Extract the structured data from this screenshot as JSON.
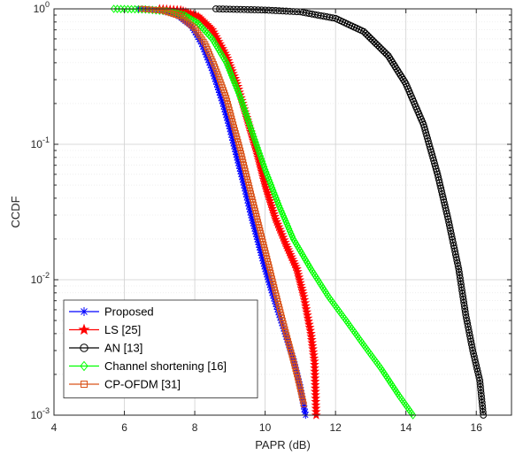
{
  "chart_data": {
    "type": "line",
    "title": "",
    "xlabel": "PAPR (dB)",
    "ylabel": "CCDF",
    "xlim": [
      4,
      17
    ],
    "ylim": [
      0.001,
      1
    ],
    "yscale": "log",
    "grid": true,
    "legend_position": "bottom-left",
    "x_ticks": [
      "4",
      "6",
      "8",
      "10",
      "12",
      "14",
      "16"
    ],
    "y_ticks": [
      {
        "base": "10",
        "exp": "0"
      },
      {
        "base": "10",
        "exp": "-1"
      },
      {
        "base": "10",
        "exp": "-2"
      },
      {
        "base": "10",
        "exp": "-3"
      }
    ],
    "series": [
      {
        "name": "Proposed",
        "color": "#0000ff",
        "marker": "asterisk",
        "x": [
          6.4,
          7.0,
          7.5,
          7.9,
          8.2,
          8.5,
          8.8,
          9.0,
          9.2,
          9.4,
          9.6,
          9.8,
          10.0,
          10.2,
          10.4,
          10.6,
          10.8,
          11.0,
          11.15
        ],
        "y": [
          1.0,
          0.98,
          0.9,
          0.75,
          0.55,
          0.35,
          0.2,
          0.13,
          0.08,
          0.05,
          0.03,
          0.019,
          0.012,
          0.008,
          0.0055,
          0.0038,
          0.0026,
          0.0016,
          0.001
        ]
      },
      {
        "name": "LS [25]",
        "color": "#ff0000",
        "marker": "star",
        "x": [
          7.0,
          7.6,
          8.1,
          8.5,
          8.9,
          9.2,
          9.5,
          9.8,
          10.0,
          10.3,
          10.6,
          10.9,
          11.1,
          11.3,
          11.4,
          11.45
        ],
        "y": [
          1.0,
          0.98,
          0.88,
          0.7,
          0.45,
          0.28,
          0.15,
          0.08,
          0.05,
          0.028,
          0.018,
          0.012,
          0.0075,
          0.004,
          0.0025,
          0.001
        ]
      },
      {
        "name": "AN [13]",
        "color": "#000000",
        "marker": "circle",
        "x": [
          8.6,
          10.0,
          11.0,
          12.0,
          12.8,
          13.5,
          14.0,
          14.5,
          14.9,
          15.2,
          15.5,
          15.7,
          15.9,
          16.1,
          16.2
        ],
        "y": [
          1.0,
          0.98,
          0.95,
          0.85,
          0.68,
          0.45,
          0.28,
          0.14,
          0.06,
          0.028,
          0.012,
          0.0055,
          0.003,
          0.0018,
          0.001
        ]
      },
      {
        "name": "Channel shortening [16]",
        "color": "#00ff00",
        "marker": "diamond",
        "x": [
          5.7,
          6.6,
          7.2,
          7.7,
          8.1,
          8.5,
          8.9,
          9.3,
          9.6,
          10.0,
          10.4,
          10.8,
          11.3,
          11.8,
          12.3,
          12.8,
          13.3,
          13.8,
          14.2
        ],
        "y": [
          1.0,
          0.99,
          0.96,
          0.9,
          0.78,
          0.6,
          0.4,
          0.22,
          0.13,
          0.065,
          0.035,
          0.02,
          0.012,
          0.0075,
          0.005,
          0.0033,
          0.0022,
          0.0014,
          0.001
        ]
      },
      {
        "name": "CP-OFDM [31]",
        "color": "#d95319",
        "marker": "square",
        "x": [
          6.5,
          7.1,
          7.6,
          8.0,
          8.3,
          8.6,
          8.9,
          9.1,
          9.3,
          9.5,
          9.7,
          9.9,
          10.1,
          10.3,
          10.5,
          10.7,
          10.9,
          11.1
        ],
        "y": [
          1.0,
          0.97,
          0.88,
          0.72,
          0.55,
          0.36,
          0.22,
          0.14,
          0.09,
          0.055,
          0.034,
          0.021,
          0.013,
          0.008,
          0.005,
          0.0032,
          0.002,
          0.0012
        ]
      }
    ]
  }
}
